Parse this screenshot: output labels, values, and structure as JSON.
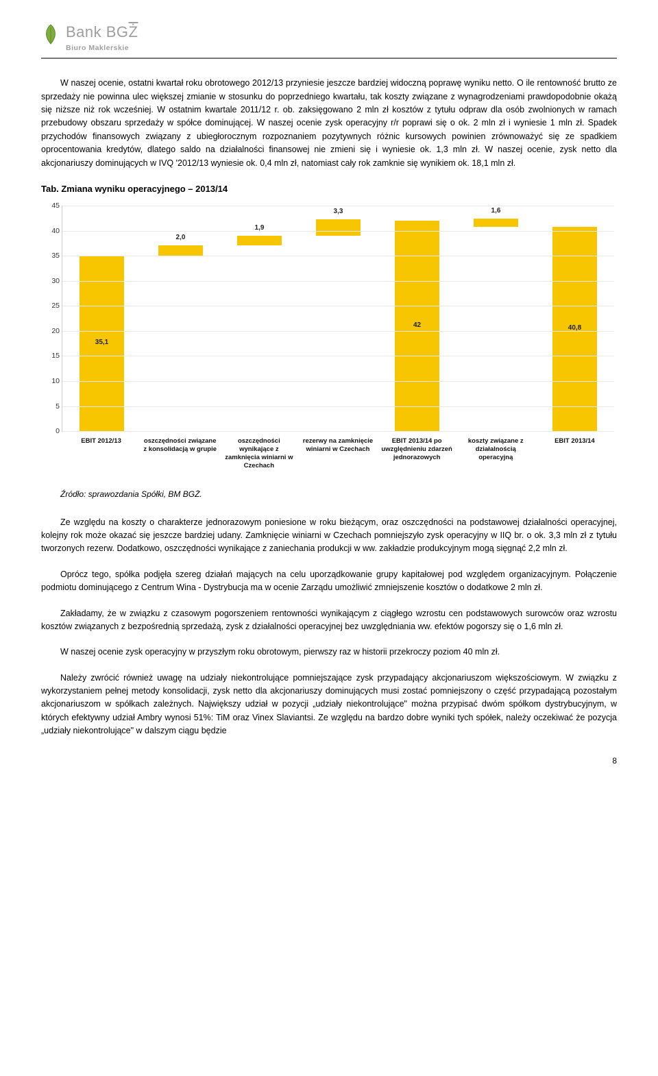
{
  "logo": {
    "bank": "Bank BG",
    "z_char": "Ż",
    "sub": "Biuro Maklerskie",
    "leaf_fill": "#7fae3f",
    "leaf_stroke": "#5f8a2a",
    "text_color": "#9e9e9e"
  },
  "para1": "W naszej ocenie, ostatni kwartał roku obrotowego 2012/13 przyniesie jeszcze bardziej widoczną poprawę wyniku netto. O ile rentowność brutto ze sprzedaży nie powinna ulec większej zmianie w stosunku do poprzedniego kwartału, tak koszty związane z wynagrodzeniami prawdopodobnie okażą się niższe niż rok wcześniej. W ostatnim kwartale 2011/12 r. ob. zaksięgowano 2 mln zł kosztów z tytułu odpraw dla osób zwolnionych w ramach przebudowy obszaru sprzedaży w spółce dominującej. W naszej ocenie zysk operacyjny r/r poprawi się o ok. 2 mln zł i wyniesie 1 mln zł. Spadek przychodów finansowych związany z ubiegłorocznym rozpoznaniem pozytywnych różnic kursowych powinien zrównoważyć się ze spadkiem oprocentowania kredytów, dlatego saldo na działalności finansowej nie zmieni się i wyniesie ok. 1,3 mln zł. W naszej ocenie, zysk netto dla akcjonariuszy dominujących w IVQ '2012/13 wyniesie ok. 0,4 mln zł, natomiast cały rok zamknie się wynikiem ok. 18,1 mln zł.",
  "chart_title": "Tab. Zmiana wyniku operacyjnego – 2013/14",
  "chart": {
    "type": "waterfall-bar",
    "ymin": 0,
    "ymax": 45,
    "ytick_step": 5,
    "bar_color": "#f7c600",
    "grid_color": "#eceae6",
    "background_color": "#ffffff",
    "label_fontsize": 10,
    "xlabel_fontsize": 9.5,
    "bars": [
      {
        "label": "35,1",
        "bottom": 0,
        "height": 35.1,
        "xlabel": "EBIT 2012/13"
      },
      {
        "label": "2,0",
        "bottom": 35.1,
        "height": 2.0,
        "xlabel": "oszczędności związane z konsolidacją w grupie"
      },
      {
        "label": "1,9",
        "bottom": 37.1,
        "height": 1.9,
        "xlabel": "oszczędności wynikające z zamknięcia winiarni w Czechach"
      },
      {
        "label": "3,3",
        "bottom": 39.0,
        "height": 3.3,
        "xlabel": "rezerwy na zamknięcie winiarni w Czechach"
      },
      {
        "label": "42",
        "bottom": 0,
        "height": 42.0,
        "xlabel": "EBIT 2013/14 po uwzględnieniu zdarzeń jednorazowych"
      },
      {
        "label": "1,6",
        "bottom": 40.8,
        "height": 1.6,
        "xlabel": "koszty związane z działalnością operacyjną"
      },
      {
        "label": "40,8",
        "bottom": 0,
        "height": 40.8,
        "xlabel": "EBIT 2013/14"
      }
    ]
  },
  "source": "Źródło: sprawozdania Spółki, BM BGŻ.",
  "para2": "Ze względu na koszty o charakterze jednorazowym poniesione w roku bieżącym, oraz oszczędności na podstawowej działalności operacyjnej, kolejny rok może okazać się jeszcze bardziej udany. Zamknięcie winiarni w Czechach pomniejszyło zysk operacyjny w IIQ br. o ok. 3,3 mln zł z tytułu tworzonych rezerw. Dodatkowo, oszczędności wynikające z zaniechania produkcji w ww. zakładzie produkcyjnym mogą sięgnąć 2,2 mln zł.",
  "para3": "Oprócz tego, spółka podjęła szereg działań mających na celu uporządkowanie grupy kapitałowej pod względem organizacyjnym. Połączenie podmiotu dominującego z Centrum Wina - Dystrybucja ma w ocenie Zarządu umożliwić zmniejszenie kosztów o dodatkowe 2 mln zł.",
  "para4": "Zakładamy, że w związku z czasowym pogorszeniem rentowności wynikającym z ciągłego wzrostu cen podstawowych surowców oraz wzrostu kosztów związanych z bezpośrednią sprzedażą, zysk z działalności operacyjnej bez uwzględniania ww. efektów pogorszy się o 1,6 mln zł.",
  "para5": "W naszej ocenie zysk operacyjny w przyszłym roku obrotowym, pierwszy raz w historii przekroczy poziom 40 mln zł.",
  "para6": "Należy zwrócić również uwagę na udziały niekontrolujące pomniejszające zysk przypadający akcjonariuszom większościowym. W związku z wykorzystaniem pełnej metody konsolidacji, zysk netto dla akcjonariuszy dominujących musi zostać pomniejszony o część przypadającą pozostałym akcjonariuszom w spółkach zależnych. Największy udział w pozycji „udziały niekontrolujące\" można przypisać dwóm spółkom dystrybucyjnym, w których efektywny udział Ambry wynosi 51%: TiM oraz Vinex Slaviantsi. Ze względu na bardzo dobre wyniki tych spółek, należy oczekiwać że pozycja „udziały niekontrolujące\" w dalszym ciągu będzie",
  "page_number": "8"
}
